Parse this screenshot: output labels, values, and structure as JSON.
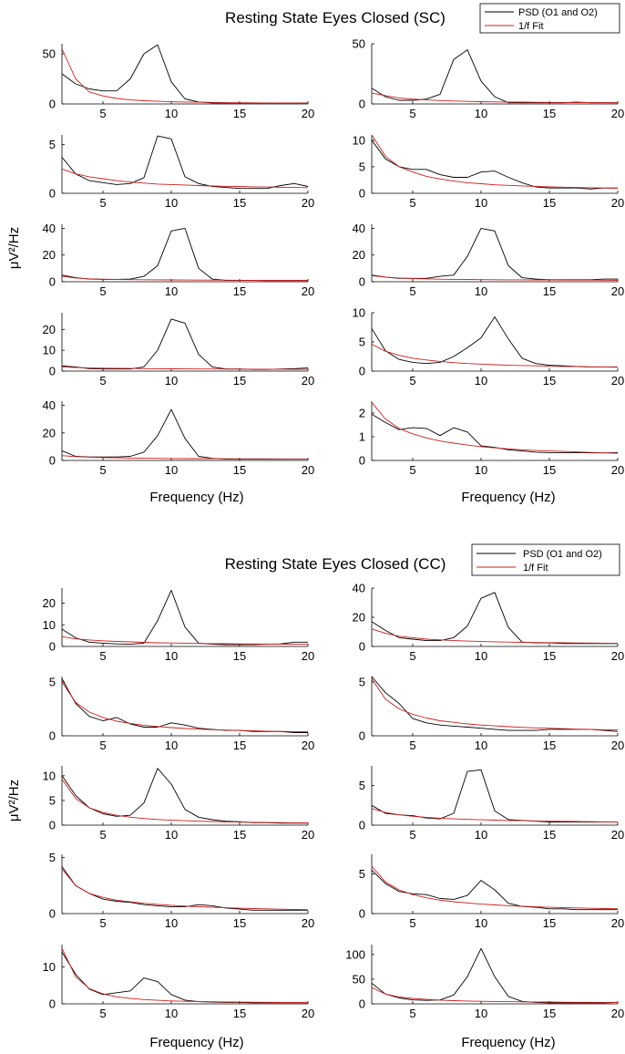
{
  "colors": {
    "psd": "#000000",
    "fit": "#cc1f1f",
    "axis": "#000000",
    "background": "#ffffff"
  },
  "chart_data": [
    {
      "id": "sc",
      "type": "line",
      "title": "Resting State Eyes Closed (SC)",
      "xlabel": "Frequency (Hz)",
      "ylabel": "μV²/Hz",
      "legend": [
        "PSD (O1 and O2)",
        "1/f Fit"
      ],
      "legend_position": "top-right",
      "x": [
        2,
        3,
        4,
        5,
        6,
        7,
        8,
        9,
        10,
        11,
        12,
        13,
        14,
        15,
        16,
        17,
        18,
        19,
        20
      ],
      "xlim": [
        2,
        20
      ],
      "xticks": [
        5,
        10,
        15,
        20
      ],
      "panels": [
        {
          "ylim": [
            0,
            60
          ],
          "yticks": [
            0,
            50
          ],
          "psd": [
            30,
            20,
            15,
            13,
            13,
            25,
            50,
            59,
            22,
            5,
            2,
            1,
            1,
            1,
            1,
            1,
            1,
            1,
            1
          ],
          "fit": [
            55,
            25,
            12,
            8,
            5.5,
            4,
            3.2,
            2.6,
            2.2,
            1.9,
            1.7,
            1.5,
            1.3,
            1.2,
            1.1,
            1,
            0.95,
            0.9,
            0.85
          ]
        },
        {
          "ylim": [
            0,
            50
          ],
          "yticks": [
            0,
            50
          ],
          "psd": [
            13,
            6,
            3,
            3,
            4,
            8,
            37,
            45,
            19,
            6,
            1,
            1,
            1,
            1,
            1,
            1.5,
            1,
            1,
            1
          ],
          "fit": [
            9,
            7,
            5,
            4,
            3.3,
            2.8,
            2.4,
            2.1,
            1.9,
            1.7,
            1.6,
            1.5,
            1.4,
            1.3,
            1.2,
            1.15,
            1.1,
            1.05,
            1
          ]
        },
        {
          "ylim": [
            0,
            6
          ],
          "yticks": [
            0,
            5
          ],
          "psd": [
            3.7,
            2,
            1.3,
            1.1,
            0.9,
            1,
            1.6,
            5.9,
            5.6,
            1.7,
            1,
            0.7,
            0.6,
            0.5,
            0.5,
            0.5,
            0.8,
            1,
            0.7
          ],
          "fit": [
            2.5,
            2,
            1.7,
            1.5,
            1.3,
            1.15,
            1.05,
            0.95,
            0.9,
            0.85,
            0.8,
            0.75,
            0.72,
            0.7,
            0.67,
            0.65,
            0.62,
            0.6,
            0.58
          ]
        },
        {
          "ylim": [
            0,
            11
          ],
          "yticks": [
            0,
            5,
            10
          ],
          "psd": [
            10,
            6.5,
            5,
            4.5,
            4.5,
            3.5,
            3,
            3,
            4,
            4.2,
            3,
            2,
            1.2,
            1,
            1,
            1,
            0.8,
            1,
            1
          ],
          "fit": [
            11,
            7,
            5,
            4,
            3.2,
            2.7,
            2.3,
            2,
            1.8,
            1.6,
            1.5,
            1.4,
            1.3,
            1.2,
            1.15,
            1.1,
            1.05,
            1,
            0.95
          ]
        },
        {
          "ylim": [
            0,
            43
          ],
          "yticks": [
            0,
            20,
            40
          ],
          "psd": [
            5,
            3,
            2,
            1.8,
            1.8,
            2,
            4,
            12,
            38,
            40,
            10,
            2,
            1,
            1,
            1,
            0.8,
            0.8,
            0.8,
            0.8
          ],
          "fit": [
            4,
            2.8,
            2.2,
            1.9,
            1.7,
            1.6,
            1.5,
            1.4,
            1.35,
            1.3,
            1.25,
            1.2,
            1.15,
            1.1,
            1.05,
            1.0,
            1,
            1,
            1
          ]
        },
        {
          "ylim": [
            0,
            43
          ],
          "yticks": [
            0,
            20,
            40
          ],
          "psd": [
            5,
            3.5,
            2.5,
            2.5,
            2.5,
            4,
            5,
            19,
            40,
            38,
            12,
            3,
            2,
            1.5,
            1.5,
            1.5,
            1.5,
            2,
            2
          ],
          "fit": [
            4.5,
            3.5,
            2.8,
            2.4,
            2.1,
            1.9,
            1.8,
            1.7,
            1.6,
            1.5,
            1.45,
            1.4,
            1.35,
            1.3,
            1.25,
            1.2,
            1.2,
            1.15,
            1.1
          ]
        },
        {
          "ylim": [
            0,
            28
          ],
          "yticks": [
            0,
            10,
            20
          ],
          "psd": [
            2.5,
            2,
            1.2,
            1,
            1,
            1,
            2,
            10,
            25,
            23,
            8,
            2,
            1,
            1,
            0.8,
            0.8,
            1,
            1.2,
            1.5
          ],
          "fit": [
            2,
            1.7,
            1.5,
            1.4,
            1.3,
            1.25,
            1.2,
            1.15,
            1.1,
            1.05,
            1,
            1,
            0.95,
            0.95,
            0.9,
            0.9,
            0.9,
            0.85,
            0.85
          ]
        },
        {
          "ylim": [
            0,
            10
          ],
          "yticks": [
            0,
            5,
            10
          ],
          "psd": [
            7.3,
            3.5,
            2,
            1.5,
            1.3,
            1.5,
            2.5,
            4,
            5.7,
            9.3,
            5.5,
            2.2,
            1.3,
            1,
            0.9,
            0.8,
            0.7,
            0.7,
            0.7
          ],
          "fit": [
            4.6,
            3.4,
            2.7,
            2.2,
            1.9,
            1.65,
            1.45,
            1.3,
            1.2,
            1.1,
            1,
            0.95,
            0.9,
            0.85,
            0.8,
            0.76,
            0.72,
            0.7,
            0.67
          ]
        },
        {
          "ylim": [
            0,
            43
          ],
          "yticks": [
            0,
            20,
            40
          ],
          "psd": [
            7,
            3,
            2.5,
            2.5,
            2.5,
            3,
            6,
            18,
            37,
            16,
            3,
            1.5,
            1,
            1,
            1,
            1,
            1,
            1,
            1
          ],
          "fit": [
            3.5,
            2.8,
            2.4,
            2.1,
            1.9,
            1.7,
            1.6,
            1.5,
            1.4,
            1.35,
            1.3,
            1.25,
            1.2,
            1.15,
            1.1,
            1.1,
            1.05,
            1.0,
            1
          ]
        },
        {
          "ylim": [
            0,
            2.5
          ],
          "yticks": [
            0,
            1,
            2
          ],
          "psd": [
            1.95,
            1.6,
            1.3,
            1.38,
            1.35,
            1.05,
            1.38,
            1.2,
            0.62,
            0.55,
            0.45,
            0.4,
            0.35,
            0.33,
            0.33,
            0.33,
            0.32,
            0.32,
            0.33
          ],
          "fit": [
            2.45,
            1.75,
            1.35,
            1.12,
            0.95,
            0.82,
            0.73,
            0.65,
            0.58,
            0.53,
            0.49,
            0.45,
            0.42,
            0.4,
            0.38,
            0.36,
            0.34,
            0.32,
            0.3
          ]
        }
      ]
    },
    {
      "id": "cc",
      "type": "line",
      "title": "Resting State Eyes Closed (CC)",
      "xlabel": "Frequency (Hz)",
      "ylabel": "μV²/Hz",
      "legend": [
        "PSD (O1 and O2)",
        "1/f Fit"
      ],
      "legend_position": "top-right",
      "x": [
        2,
        3,
        4,
        5,
        6,
        7,
        8,
        9,
        10,
        11,
        12,
        13,
        14,
        15,
        16,
        17,
        18,
        19,
        20
      ],
      "xlim": [
        2,
        20
      ],
      "xticks": [
        5,
        10,
        15,
        20
      ],
      "panels": [
        {
          "ylim": [
            0,
            27
          ],
          "yticks": [
            0,
            10,
            20
          ],
          "psd": [
            8,
            4,
            2,
            1.5,
            1.2,
            1,
            1.5,
            12,
            26,
            9,
            1.5,
            1,
            0.8,
            0.8,
            0.8,
            1,
            1.2,
            2,
            2
          ],
          "fit": [
            4.5,
            3.5,
            3,
            2.6,
            2.3,
            2.1,
            1.9,
            1.7,
            1.6,
            1.5,
            1.4,
            1.3,
            1.25,
            1.2,
            1.15,
            1.1,
            1.05,
            1,
            1
          ]
        },
        {
          "ylim": [
            0,
            40
          ],
          "yticks": [
            0,
            20,
            40
          ],
          "psd": [
            17,
            11,
            6,
            5,
            4,
            4,
            6,
            14,
            33,
            37,
            13,
            3,
            2.5,
            2.5,
            2,
            2,
            2,
            2,
            2
          ],
          "fit": [
            12,
            9,
            7,
            6,
            5,
            4.5,
            4,
            3.7,
            3.4,
            3.2,
            3,
            2.8,
            2.7,
            2.6,
            2.5,
            2.4,
            2.3,
            2.2,
            2.1
          ]
        },
        {
          "ylim": [
            0,
            5.5
          ],
          "yticks": [
            0,
            5
          ],
          "psd": [
            5.3,
            3,
            1.8,
            1.4,
            1.7,
            1.1,
            0.8,
            0.8,
            1.2,
            1,
            0.7,
            0.6,
            0.5,
            0.5,
            0.4,
            0.4,
            0.4,
            0.3,
            0.3
          ],
          "fit": [
            5,
            3.1,
            2.2,
            1.7,
            1.35,
            1.15,
            0.98,
            0.86,
            0.76,
            0.68,
            0.62,
            0.57,
            0.53,
            0.49,
            0.46,
            0.43,
            0.41,
            0.39,
            0.37
          ]
        },
        {
          "ylim": [
            0,
            5.5
          ],
          "yticks": [
            0,
            5
          ],
          "psd": [
            5.5,
            4,
            3,
            1.6,
            1.2,
            1,
            0.9,
            0.8,
            0.7,
            0.6,
            0.5,
            0.5,
            0.5,
            0.6,
            0.6,
            0.6,
            0.6,
            0.5,
            0.4
          ],
          "fit": [
            5.3,
            3.4,
            2.5,
            2,
            1.65,
            1.4,
            1.25,
            1.1,
            1,
            0.92,
            0.85,
            0.79,
            0.74,
            0.7,
            0.66,
            0.62,
            0.59,
            0.56,
            0.54
          ]
        },
        {
          "ylim": [
            0,
            12
          ],
          "yticks": [
            0,
            5,
            10
          ],
          "psd": [
            10,
            6,
            3.5,
            2.3,
            1.8,
            2,
            4.5,
            11.5,
            8.3,
            3.2,
            1.6,
            1.1,
            0.8,
            0.7,
            0.5,
            0.5,
            0.4,
            0.4,
            0.4
          ],
          "fit": [
            9.3,
            5.4,
            3.5,
            2.6,
            2,
            1.6,
            1.35,
            1.15,
            1,
            0.9,
            0.8,
            0.73,
            0.67,
            0.62,
            0.57,
            0.53,
            0.5,
            0.47,
            0.44
          ]
        },
        {
          "ylim": [
            0,
            7.5
          ],
          "yticks": [
            0,
            5
          ],
          "psd": [
            2.5,
            1.5,
            1.3,
            1.2,
            0.9,
            0.8,
            1.5,
            6.8,
            7,
            1.8,
            0.7,
            0.6,
            0.5,
            0.4,
            0.4,
            0.4,
            0.4,
            0.4,
            0.4
          ],
          "fit": [
            2.1,
            1.6,
            1.3,
            1.12,
            0.98,
            0.88,
            0.8,
            0.73,
            0.68,
            0.63,
            0.59,
            0.56,
            0.53,
            0.5,
            0.48,
            0.46,
            0.44,
            0.42,
            0.4
          ]
        },
        {
          "ylim": [
            0,
            5.3
          ],
          "yticks": [
            0,
            5
          ],
          "psd": [
            4.2,
            2.5,
            1.8,
            1.3,
            1.1,
            1,
            0.8,
            0.7,
            0.6,
            0.6,
            0.8,
            0.7,
            0.5,
            0.4,
            0.3,
            0.3,
            0.3,
            0.3,
            0.3
          ],
          "fit": [
            4,
            2.5,
            1.8,
            1.45,
            1.2,
            1.05,
            0.92,
            0.82,
            0.74,
            0.67,
            0.61,
            0.56,
            0.52,
            0.48,
            0.45,
            0.42,
            0.39,
            0.37,
            0.35
          ]
        },
        {
          "ylim": [
            0,
            7.5
          ],
          "yticks": [
            0,
            5
          ],
          "psd": [
            5.5,
            3.8,
            2.8,
            2.5,
            2.4,
            1.9,
            1.8,
            2.3,
            4.2,
            3,
            1.3,
            0.9,
            0.8,
            0.6,
            0.6,
            0.5,
            0.5,
            0.5,
            0.5
          ],
          "fit": [
            6,
            4,
            3,
            2.4,
            2,
            1.7,
            1.5,
            1.35,
            1.2,
            1.1,
            1,
            0.92,
            0.85,
            0.8,
            0.75,
            0.71,
            0.67,
            0.64,
            0.61
          ]
        },
        {
          "ylim": [
            0,
            16
          ],
          "yticks": [
            0,
            10
          ],
          "psd": [
            14,
            8,
            4,
            2.5,
            3,
            3.5,
            7,
            6,
            2.5,
            1,
            0.6,
            0.5,
            0.4,
            0.4,
            0.3,
            0.3,
            0.3,
            0.3,
            0.3
          ],
          "fit": [
            15,
            7.3,
            4.1,
            2.7,
            1.9,
            1.45,
            1.15,
            0.95,
            0.8,
            0.7,
            0.62,
            0.56,
            0.51,
            0.47,
            0.44,
            0.41,
            0.38,
            0.36,
            0.34
          ]
        },
        {
          "ylim": [
            0,
            120
          ],
          "yticks": [
            0,
            50,
            100
          ],
          "psd": [
            42,
            20,
            12,
            8,
            7,
            8,
            18,
            55,
            112,
            55,
            15,
            5,
            3,
            2,
            2,
            2,
            2,
            2,
            3
          ],
          "fit": [
            33,
            20,
            14,
            11,
            9,
            7.5,
            6.5,
            5.8,
            5.2,
            4.8,
            4.4,
            4.1,
            3.8,
            3.6,
            3.4,
            3.2,
            3.1,
            3,
            2.9
          ]
        }
      ]
    }
  ]
}
